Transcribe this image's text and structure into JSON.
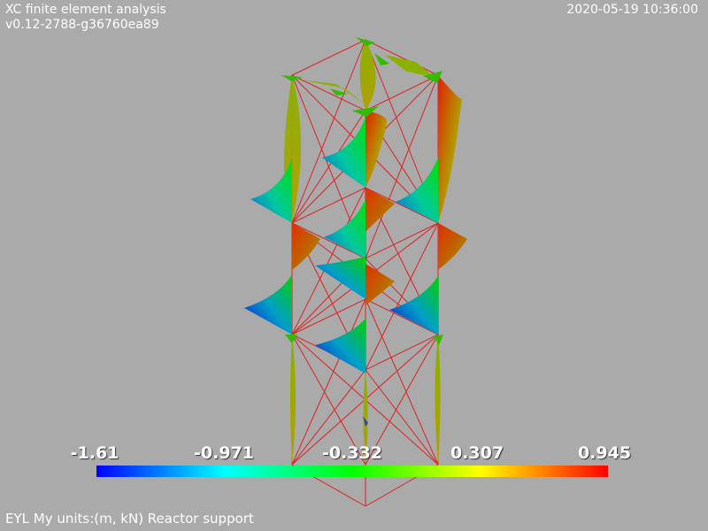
{
  "header": {
    "title": "XC finite element analysis",
    "version": "v0.12-2788-g36760ea89",
    "timestamp": "2020-05-19 10:36:00"
  },
  "footer": {
    "caption": "EYL My units:(m, kN) Reactor support"
  },
  "colorbar": {
    "ticks": [
      "-1.61",
      "-0.971",
      "-0.332",
      "0.307",
      "0.945"
    ],
    "min": -1.61,
    "max": 0.945,
    "colors": [
      "#0000ff",
      "#00ffff",
      "#00ff00",
      "#ffff00",
      "#ff0000"
    ]
  },
  "colors": {
    "background": "#aaaaaa",
    "member_line": "#dd2222",
    "text": "#ffffff"
  }
}
